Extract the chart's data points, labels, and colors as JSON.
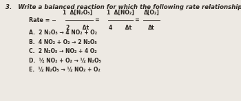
{
  "background_color": "#ede9e3",
  "text_color": "#2a2520",
  "question": "3.   Write a balanced reaction for which the following rate relationships are true.",
  "rate_intro": "Rate = −",
  "frac1_num": "1  Δ[N₂O₅]",
  "frac1_den": "2      Δt",
  "frac2_num": "1  Δ[NO₂]",
  "frac2_den": "4      Δt",
  "frac3_num": "Δ[O₂]",
  "frac3_den": "Δt",
  "choices": [
    "A.  2 N₂O₅ → 4 NO₂ + O₂",
    "B.  4 NO₂ + O₂ → 2 N₂O₅",
    "C.  2 N₂O₅ → NO₂ + 4 O₂",
    "D.  ½ NO₂ + O₂ → ½ N₂O₅",
    "E.  ½ N₂O₅ → ½ NO₂ + O₂"
  ],
  "fs_title": 6.2,
  "fs_rate": 5.8,
  "fs_choices": 5.5
}
